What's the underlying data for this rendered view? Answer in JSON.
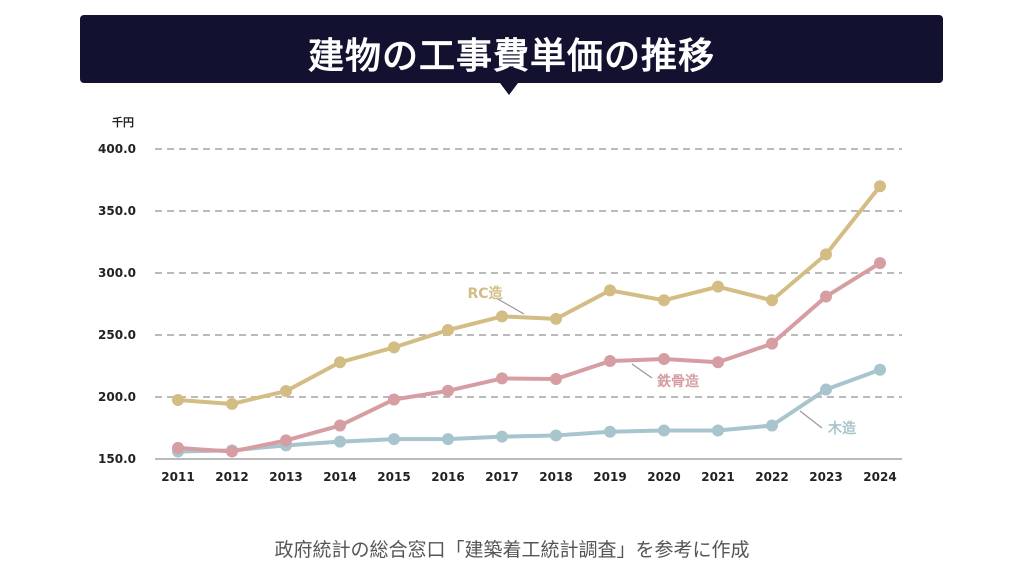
{
  "title": "建物の工事費単価の推移",
  "source": "政府統計の総合窓口「建築着工統計調査」を参考に作成",
  "chart_data": {
    "type": "line",
    "title": "建物の工事費単価の推移",
    "ylabel": "千円",
    "ylim": [
      150,
      400
    ],
    "yticks": [
      "150.0",
      "200.0",
      "250.0",
      "300.0",
      "350.0",
      "400.0"
    ],
    "grid": true,
    "x": [
      "2011",
      "2012",
      "2013",
      "2014",
      "2015",
      "2016",
      "2017",
      "2018",
      "2019",
      "2020",
      "2021",
      "2022",
      "2023",
      "2024"
    ],
    "series": [
      {
        "name": "RC造",
        "color": "#d4bd85",
        "values": [
          197.6,
          194.4,
          204.8,
          228,
          240,
          254,
          265,
          263,
          286,
          278,
          289,
          278,
          315,
          370
        ]
      },
      {
        "name": "鉄骨造",
        "color": "#d69ea2",
        "values": [
          159,
          156,
          165,
          177,
          198,
          205,
          215,
          214.5,
          229,
          230.6,
          228,
          243,
          281,
          308
        ]
      },
      {
        "name": "木造",
        "color": "#a8c4cd",
        "values": [
          156,
          157,
          161,
          164,
          166,
          166,
          168,
          169,
          172,
          173,
          173,
          177,
          206,
          222
        ]
      }
    ]
  }
}
